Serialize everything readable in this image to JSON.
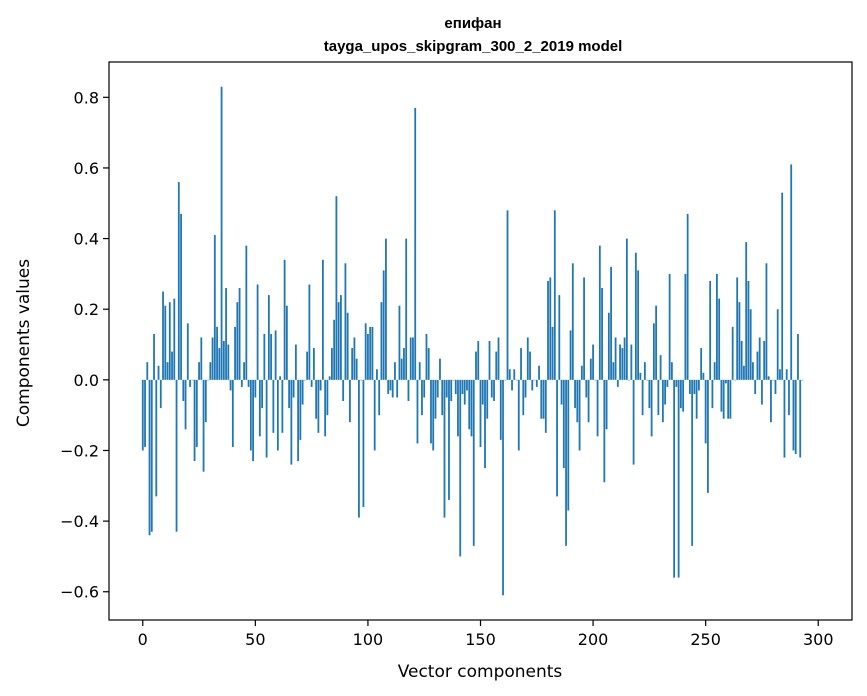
{
  "chart_data": {
    "type": "bar",
    "title": "епифан",
    "subtitle": "tayga_upos_skipgram_300_2_2019 model",
    "xlabel": "Vector components",
    "ylabel": "Components values",
    "xlim": [
      -15,
      315
    ],
    "ylim": [
      -0.68,
      0.9
    ],
    "x_ticks": [
      0,
      50,
      100,
      150,
      200,
      250,
      300
    ],
    "y_ticks": [
      -0.6,
      -0.4,
      -0.2,
      0.0,
      0.2,
      0.4,
      0.6,
      0.8
    ],
    "y_tick_labels": [
      "−0.6",
      "−0.4",
      "−0.2",
      "0.0",
      "0.2",
      "0.4",
      "0.6",
      "0.8"
    ],
    "grid": false,
    "bar_color": "#1f77b4",
    "series": [
      {
        "values": [
          -0.2,
          -0.19,
          0.05,
          -0.44,
          -0.43,
          0.13,
          -0.33,
          0.04,
          -0.08,
          0.25,
          0.21,
          0.05,
          0.22,
          0.08,
          0.23,
          -0.43,
          0.56,
          0.47,
          -0.06,
          -0.14,
          0.16,
          -0.02,
          0.0,
          -0.23,
          -0.19,
          0.05,
          0.12,
          -0.26,
          -0.12,
          0.0,
          0.05,
          0.12,
          0.41,
          0.15,
          0.09,
          0.83,
          0.11,
          0.26,
          0.1,
          -0.03,
          -0.19,
          0.15,
          0.22,
          0.26,
          -0.02,
          0.05,
          0.38,
          -0.02,
          -0.2,
          -0.23,
          -0.05,
          0.27,
          -0.16,
          -0.08,
          0.13,
          -0.22,
          0.24,
          0.13,
          -0.15,
          0.14,
          -0.2,
          0.01,
          -0.15,
          0.34,
          0.21,
          -0.08,
          -0.24,
          -0.05,
          0.1,
          -0.23,
          -0.17,
          -0.07,
          0.0,
          0.08,
          0.27,
          -0.02,
          0.09,
          -0.11,
          -0.15,
          -0.03,
          0.34,
          -0.16,
          -0.1,
          0.01,
          0.09,
          0.17,
          0.52,
          0.22,
          0.24,
          -0.06,
          0.33,
          0.19,
          -0.12,
          0.09,
          0.12,
          0.06,
          -0.39,
          0.0,
          -0.36,
          0.16,
          0.13,
          0.15,
          0.15,
          -0.2,
          0.03,
          -0.1,
          0.22,
          0.31,
          0.4,
          -0.04,
          -0.03,
          -0.05,
          0.05,
          -0.05,
          0.21,
          0.06,
          0.09,
          0.4,
          -0.06,
          0.12,
          0.12,
          0.77,
          -0.18,
          0.05,
          -0.1,
          -0.05,
          0.13,
          0.09,
          -0.18,
          -0.2,
          -0.11,
          -0.05,
          0.06,
          -0.1,
          -0.39,
          -0.05,
          -0.34,
          -0.06,
          0.0,
          -0.04,
          -0.16,
          -0.5,
          -0.04,
          -0.07,
          -0.03,
          -0.14,
          -0.16,
          -0.47,
          0.08,
          0.11,
          -0.19,
          -0.07,
          -0.25,
          -0.11,
          0.11,
          -0.05,
          -0.06,
          0.08,
          0.12,
          -0.17,
          -0.61,
          0.0,
          0.48,
          0.03,
          -0.03,
          0.03,
          0.0,
          -0.2,
          0.09,
          -0.1,
          -0.05,
          0.12,
          0.08,
          -0.03,
          0.0,
          -0.02,
          0.04,
          -0.11,
          -0.11,
          -0.15,
          0.28,
          0.29,
          0.15,
          0.48,
          -0.33,
          0.24,
          -0.07,
          -0.25,
          -0.47,
          -0.37,
          0.14,
          0.33,
          -0.08,
          -0.12,
          -0.2,
          0.04,
          0.29,
          -0.05,
          -0.12,
          0.06,
          0.1,
          0.0,
          -0.16,
          0.38,
          0.26,
          -0.29,
          -0.14,
          0.19,
          0.32,
          0.05,
          0.12,
          -0.02,
          0.1,
          0.09,
          0.12,
          0.4,
          0.0,
          0.1,
          -0.24,
          0.36,
          0.31,
          0.02,
          -0.1,
          0.05,
          0.0,
          -0.08,
          -0.16,
          0.16,
          0.21,
          -0.1,
          0.07,
          -0.12,
          -0.07,
          -0.02,
          0.3,
          0.05,
          -0.56,
          -0.02,
          -0.56,
          -0.08,
          -0.09,
          0.3,
          0.47,
          -0.04,
          -0.47,
          -0.04,
          -0.11,
          -0.03,
          0.09,
          0.02,
          -0.18,
          -0.32,
          0.28,
          -0.08,
          0.05,
          0.3,
          0.23,
          -0.09,
          -0.11,
          -0.01,
          -0.11,
          -0.11,
          0.15,
          0.0,
          0.29,
          0.22,
          0.11,
          0.04,
          0.39,
          0.28,
          0.2,
          0.05,
          -0.04,
          0.08,
          0.12,
          -0.07,
          0.11,
          0.33,
          0.01,
          -0.12,
          0.0,
          -0.04,
          0.2,
          0.03,
          0.53,
          -0.22,
          0.03,
          -0.1,
          0.61,
          -0.2,
          -0.21,
          0.13,
          -0.22,
          0.0
        ]
      }
    ]
  }
}
